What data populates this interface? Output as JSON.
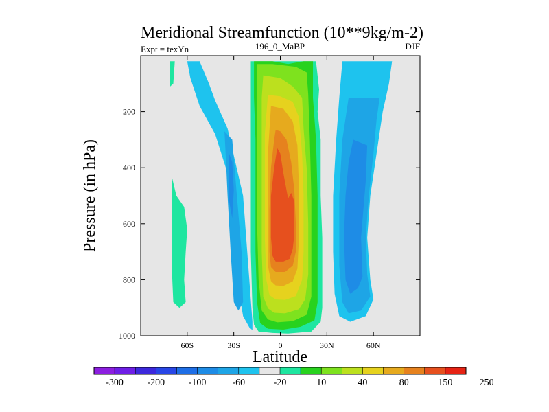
{
  "chart_data": {
    "type": "heatmap",
    "title": "Meridional Streamfunction (10**9kg/m-2)",
    "left_label": "Expt = texYn",
    "center_label": "196_0_MaBP",
    "right_label": "DJF",
    "xlabel": "Latitude",
    "ylabel": "Pressure (in hPa)",
    "xlim": [
      -90,
      90
    ],
    "ylim": [
      1000,
      0
    ],
    "y_reversed": true,
    "x_ticks": [
      {
        "value": -60,
        "label": "60S"
      },
      {
        "value": -30,
        "label": "30S"
      },
      {
        "value": 0,
        "label": "0"
      },
      {
        "value": 30,
        "label": "30N"
      },
      {
        "value": 60,
        "label": "60N"
      }
    ],
    "y_ticks": [
      {
        "value": 200,
        "label": "200"
      },
      {
        "value": 400,
        "label": "400"
      },
      {
        "value": 600,
        "label": "600"
      },
      {
        "value": 800,
        "label": "800"
      },
      {
        "value": 1000,
        "label": "1000"
      }
    ],
    "background_color": "#e6e6e6",
    "colorbar": {
      "levels": [
        "-300",
        "-200",
        "-100",
        "-60",
        "-20",
        "10",
        "40",
        "80",
        "150",
        "250"
      ],
      "colors": [
        "#8c1ee0",
        "#6e1ee6",
        "#3c28dc",
        "#2846e6",
        "#1e6ee6",
        "#1e8ce6",
        "#1ea5e6",
        "#1ec3ee",
        "#e6e6e6",
        "#1ee6a0",
        "#28d21e",
        "#7ee21e",
        "#bce01e",
        "#e6d21e",
        "#e6aa1e",
        "#e6821e",
        "#e6501e",
        "#e62314"
      ]
    },
    "regions": [
      {
        "value": 1,
        "color": "#1ec3ee",
        "polygon": [
          [
            -60,
            20
          ],
          [
            -52,
            20
          ],
          [
            -46,
            100
          ],
          [
            -42,
            160
          ],
          [
            -34,
            260
          ],
          [
            -24,
            500
          ],
          [
            -20,
            800
          ],
          [
            -18,
            950
          ],
          [
            -18,
            980
          ],
          [
            -20,
            970
          ],
          [
            -24,
            930
          ],
          [
            -28,
            800
          ],
          [
            -31,
            600
          ],
          [
            -34,
            420
          ],
          [
            -42,
            280
          ],
          [
            -52,
            180
          ],
          [
            -58,
            80
          ]
        ]
      },
      {
        "value": 1,
        "color": "#1ec3ee",
        "polygon": [
          [
            40,
            20
          ],
          [
            72,
            20
          ],
          [
            70,
            100
          ],
          [
            66,
            200
          ],
          [
            62,
            350
          ],
          [
            58,
            500
          ],
          [
            56,
            650
          ],
          [
            58,
            800
          ],
          [
            60,
            870
          ],
          [
            55,
            930
          ],
          [
            45,
            950
          ],
          [
            38,
            930
          ],
          [
            35,
            850
          ],
          [
            34,
            700
          ],
          [
            34,
            500
          ],
          [
            36,
            300
          ],
          [
            38,
            150
          ]
        ]
      },
      {
        "value": 2,
        "color": "#1ea5e6",
        "polygon": [
          [
            -36,
            270
          ],
          [
            -31,
            300
          ],
          [
            -28,
            500
          ],
          [
            -25,
            700
          ],
          [
            -24,
            880
          ],
          [
            -27,
            910
          ],
          [
            -30,
            880
          ],
          [
            -32,
            700
          ],
          [
            -34,
            500
          ],
          [
            -35,
            380
          ]
        ]
      },
      {
        "value": 2,
        "color": "#1ea5e6",
        "polygon": [
          [
            44,
            150
          ],
          [
            64,
            150
          ],
          [
            62,
            230
          ],
          [
            60,
            350
          ],
          [
            57,
            500
          ],
          [
            55,
            650
          ],
          [
            56,
            780
          ],
          [
            58,
            860
          ],
          [
            52,
            910
          ],
          [
            44,
            920
          ],
          [
            40,
            880
          ],
          [
            38,
            750
          ],
          [
            38,
            500
          ],
          [
            40,
            300
          ]
        ]
      },
      {
        "value": 3,
        "color": "#1e8ce6",
        "polygon": [
          [
            -33,
            350
          ],
          [
            -31,
            380
          ],
          [
            -30,
            480
          ],
          [
            -31,
            580
          ],
          [
            -33,
            520
          ]
        ]
      },
      {
        "value": 3,
        "color": "#1e8ce6",
        "polygon": [
          [
            47,
            300
          ],
          [
            56,
            320
          ],
          [
            55,
            450
          ],
          [
            52,
            650
          ],
          [
            53,
            790
          ],
          [
            50,
            830
          ],
          [
            45,
            850
          ],
          [
            42,
            800
          ],
          [
            41,
            650
          ],
          [
            42,
            500
          ],
          [
            44,
            380
          ]
        ]
      },
      {
        "value": 5,
        "color": "#1ee6a0",
        "polygon": [
          [
            -71,
            20
          ],
          [
            -68,
            20
          ],
          [
            -69,
            100
          ],
          [
            -71,
            110
          ]
        ]
      },
      {
        "value": 5,
        "color": "#1ee6a0",
        "polygon": [
          [
            -70,
            430
          ],
          [
            -67,
            500
          ],
          [
            -62,
            540
          ],
          [
            -60,
            620
          ],
          [
            -61,
            700
          ],
          [
            -62,
            800
          ],
          [
            -61,
            880
          ],
          [
            -65,
            900
          ],
          [
            -69,
            880
          ],
          [
            -70,
            750
          ],
          [
            -70,
            600
          ]
        ]
      },
      {
        "value": 5,
        "color": "#1ee6a0",
        "polygon": [
          [
            -19,
            20
          ],
          [
            23,
            20
          ],
          [
            25,
            120
          ],
          [
            24,
            200
          ],
          [
            26,
            300
          ],
          [
            26,
            400
          ],
          [
            26,
            500
          ],
          [
            27,
            650
          ],
          [
            27,
            800
          ],
          [
            27,
            900
          ],
          [
            26,
            950
          ],
          [
            20,
            985
          ],
          [
            5,
            992
          ],
          [
            -5,
            990
          ],
          [
            -14,
            985
          ],
          [
            -17,
            960
          ],
          [
            -18,
            900
          ],
          [
            -19,
            700
          ],
          [
            -19,
            500
          ],
          [
            -19,
            300
          ],
          [
            -19,
            100
          ]
        ]
      },
      {
        "value": 6,
        "color": "#28d21e",
        "polygon": [
          [
            -17,
            20
          ],
          [
            -5,
            20
          ],
          [
            5,
            30
          ],
          [
            15,
            20
          ],
          [
            21,
            20
          ],
          [
            21,
            150
          ],
          [
            23,
            300
          ],
          [
            24,
            500
          ],
          [
            24,
            700
          ],
          [
            24,
            880
          ],
          [
            22,
            945
          ],
          [
            13,
            968
          ],
          [
            2,
            978
          ],
          [
            -8,
            975
          ],
          [
            -13,
            955
          ],
          [
            -15,
            880
          ],
          [
            -16,
            700
          ],
          [
            -16,
            500
          ],
          [
            -16,
            300
          ],
          [
            -17,
            150
          ]
        ]
      },
      {
        "value": 7,
        "color": "#7ee21e",
        "polygon": [
          [
            -15,
            30
          ],
          [
            -5,
            30
          ],
          [
            10,
            40
          ],
          [
            17,
            60
          ],
          [
            18,
            140
          ],
          [
            19,
            300
          ],
          [
            20,
            500
          ],
          [
            20,
            700
          ],
          [
            20,
            860
          ],
          [
            17,
            925
          ],
          [
            8,
            948
          ],
          [
            -2,
            952
          ],
          [
            -8,
            942
          ],
          [
            -12,
            910
          ],
          [
            -14,
            800
          ],
          [
            -15,
            600
          ],
          [
            -15,
            350
          ],
          [
            -15,
            150
          ]
        ]
      },
      {
        "value": 8,
        "color": "#bce01e",
        "polygon": [
          [
            -11,
            70
          ],
          [
            0,
            80
          ],
          [
            8,
            110
          ],
          [
            14,
            150
          ],
          [
            15,
            260
          ],
          [
            17,
            400
          ],
          [
            18,
            600
          ],
          [
            18,
            780
          ],
          [
            16,
            870
          ],
          [
            12,
            905
          ],
          [
            3,
            920
          ],
          [
            -4,
            918
          ],
          [
            -8,
            902
          ],
          [
            -11,
            860
          ],
          [
            -12,
            700
          ],
          [
            -12,
            500
          ],
          [
            -12,
            300
          ],
          [
            -12,
            150
          ]
        ]
      },
      {
        "value": 9,
        "color": "#e6d21e",
        "polygon": [
          [
            -8,
            140
          ],
          [
            0,
            145
          ],
          [
            8,
            165
          ],
          [
            12,
            220
          ],
          [
            14,
            350
          ],
          [
            15,
            500
          ],
          [
            15,
            700
          ],
          [
            14,
            800
          ],
          [
            10,
            858
          ],
          [
            3,
            872
          ],
          [
            -3,
            870
          ],
          [
            -7,
            855
          ],
          [
            -9,
            800
          ],
          [
            -10,
            650
          ],
          [
            -10,
            450
          ],
          [
            -10,
            280
          ]
        ]
      },
      {
        "value": 10,
        "color": "#e6aa1e",
        "polygon": [
          [
            -6,
            180
          ],
          [
            2,
            190
          ],
          [
            8,
            235
          ],
          [
            11,
            320
          ],
          [
            12,
            470
          ],
          [
            12,
            650
          ],
          [
            11,
            760
          ],
          [
            8,
            806
          ],
          [
            2,
            822
          ],
          [
            -3,
            820
          ],
          [
            -6,
            805
          ],
          [
            -8,
            750
          ],
          [
            -8,
            550
          ],
          [
            -8,
            350
          ]
        ]
      },
      {
        "value": 11,
        "color": "#e6821e",
        "polygon": [
          [
            -3,
            265
          ],
          [
            0,
            270
          ],
          [
            4,
            300
          ],
          [
            7,
            380
          ],
          [
            9,
            480
          ],
          [
            10,
            600
          ],
          [
            10,
            700
          ],
          [
            8,
            750
          ],
          [
            3,
            772
          ],
          [
            -3,
            772
          ],
          [
            -6,
            755
          ],
          [
            -7,
            700
          ],
          [
            -7,
            550
          ],
          [
            -6,
            400
          ],
          [
            -4,
            300
          ]
        ]
      },
      {
        "value": 12,
        "color": "#e6501e",
        "polygon": [
          [
            -2,
            330
          ],
          [
            0,
            350
          ],
          [
            2,
            420
          ],
          [
            5,
            510
          ],
          [
            7,
            490
          ],
          [
            9,
            520
          ],
          [
            9,
            640
          ],
          [
            8,
            690
          ],
          [
            6,
            725
          ],
          [
            2,
            735
          ],
          [
            -3,
            735
          ],
          [
            -5,
            715
          ],
          [
            -6,
            650
          ],
          [
            -6,
            500
          ],
          [
            -4,
            400
          ]
        ]
      }
    ]
  }
}
